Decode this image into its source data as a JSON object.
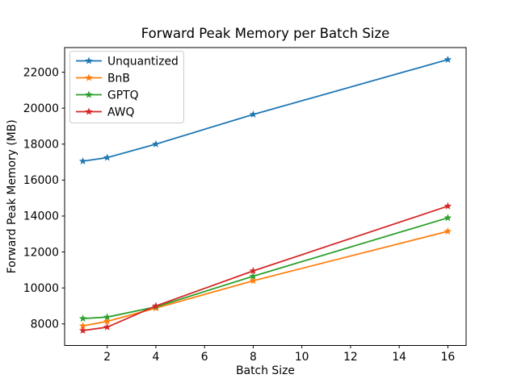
{
  "figure": {
    "background": "#ffffff",
    "text_color": "#000000",
    "spine_color": "#000000",
    "legend_border_color": "#cccccc",
    "legend_background": "#ffffff"
  },
  "chart_data": {
    "type": "line",
    "title": "Forward Peak Memory per Batch Size",
    "xlabel": "Batch Size",
    "ylabel": "Forward Peak Memory (MB)",
    "marker": "star",
    "grid": false,
    "legend_position": "upper left",
    "x": [
      1,
      2,
      4,
      8,
      16
    ],
    "xticks": [
      2,
      4,
      6,
      8,
      10,
      12,
      14,
      16
    ],
    "yticks": [
      8000,
      10000,
      12000,
      14000,
      16000,
      18000,
      20000,
      22000
    ],
    "xlim": [
      0.25,
      16.75
    ],
    "ylim": [
      6800,
      23370
    ],
    "series": [
      {
        "name": "Unquantized",
        "color": "#1f77b4",
        "values": [
          17050,
          17250,
          18000,
          19650,
          22700
        ]
      },
      {
        "name": "BnB",
        "color": "#ff7f0e",
        "values": [
          7890,
          8140,
          8880,
          10400,
          13150
        ]
      },
      {
        "name": "GPTQ",
        "color": "#2ca02c",
        "values": [
          8300,
          8380,
          8950,
          10650,
          13900
        ]
      },
      {
        "name": "AWQ",
        "color": "#d62728",
        "values": [
          7630,
          7820,
          9000,
          10950,
          14550
        ]
      }
    ]
  }
}
